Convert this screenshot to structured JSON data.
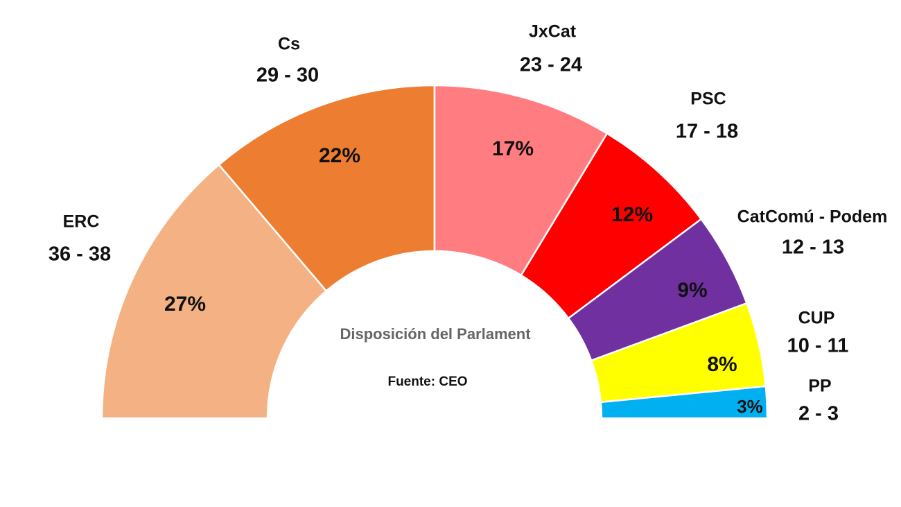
{
  "chart_data": {
    "type": "halfdonut",
    "title": "Disposición del Parlament",
    "source": "Fuente: CEO",
    "categories": [
      "ERC",
      "Cs",
      "JxCat",
      "PSC",
      "CatComú - Podem",
      "CUP",
      "PP"
    ],
    "seats": [
      "36 - 38",
      "29 - 30",
      "23 - 24",
      "17 - 18",
      "12 - 13",
      "10 - 11",
      "2 - 3"
    ],
    "values": [
      27,
      22,
      17,
      12,
      9,
      8,
      3
    ],
    "value_labels": [
      "27%",
      "22%",
      "17%",
      "12%",
      "9%",
      "8%",
      "3%"
    ],
    "colors": [
      "#f4b183",
      "#ed7d31",
      "#ff7c80",
      "#ff0000",
      "#7030a0",
      "#ffff00",
      "#00b0f0"
    ]
  }
}
